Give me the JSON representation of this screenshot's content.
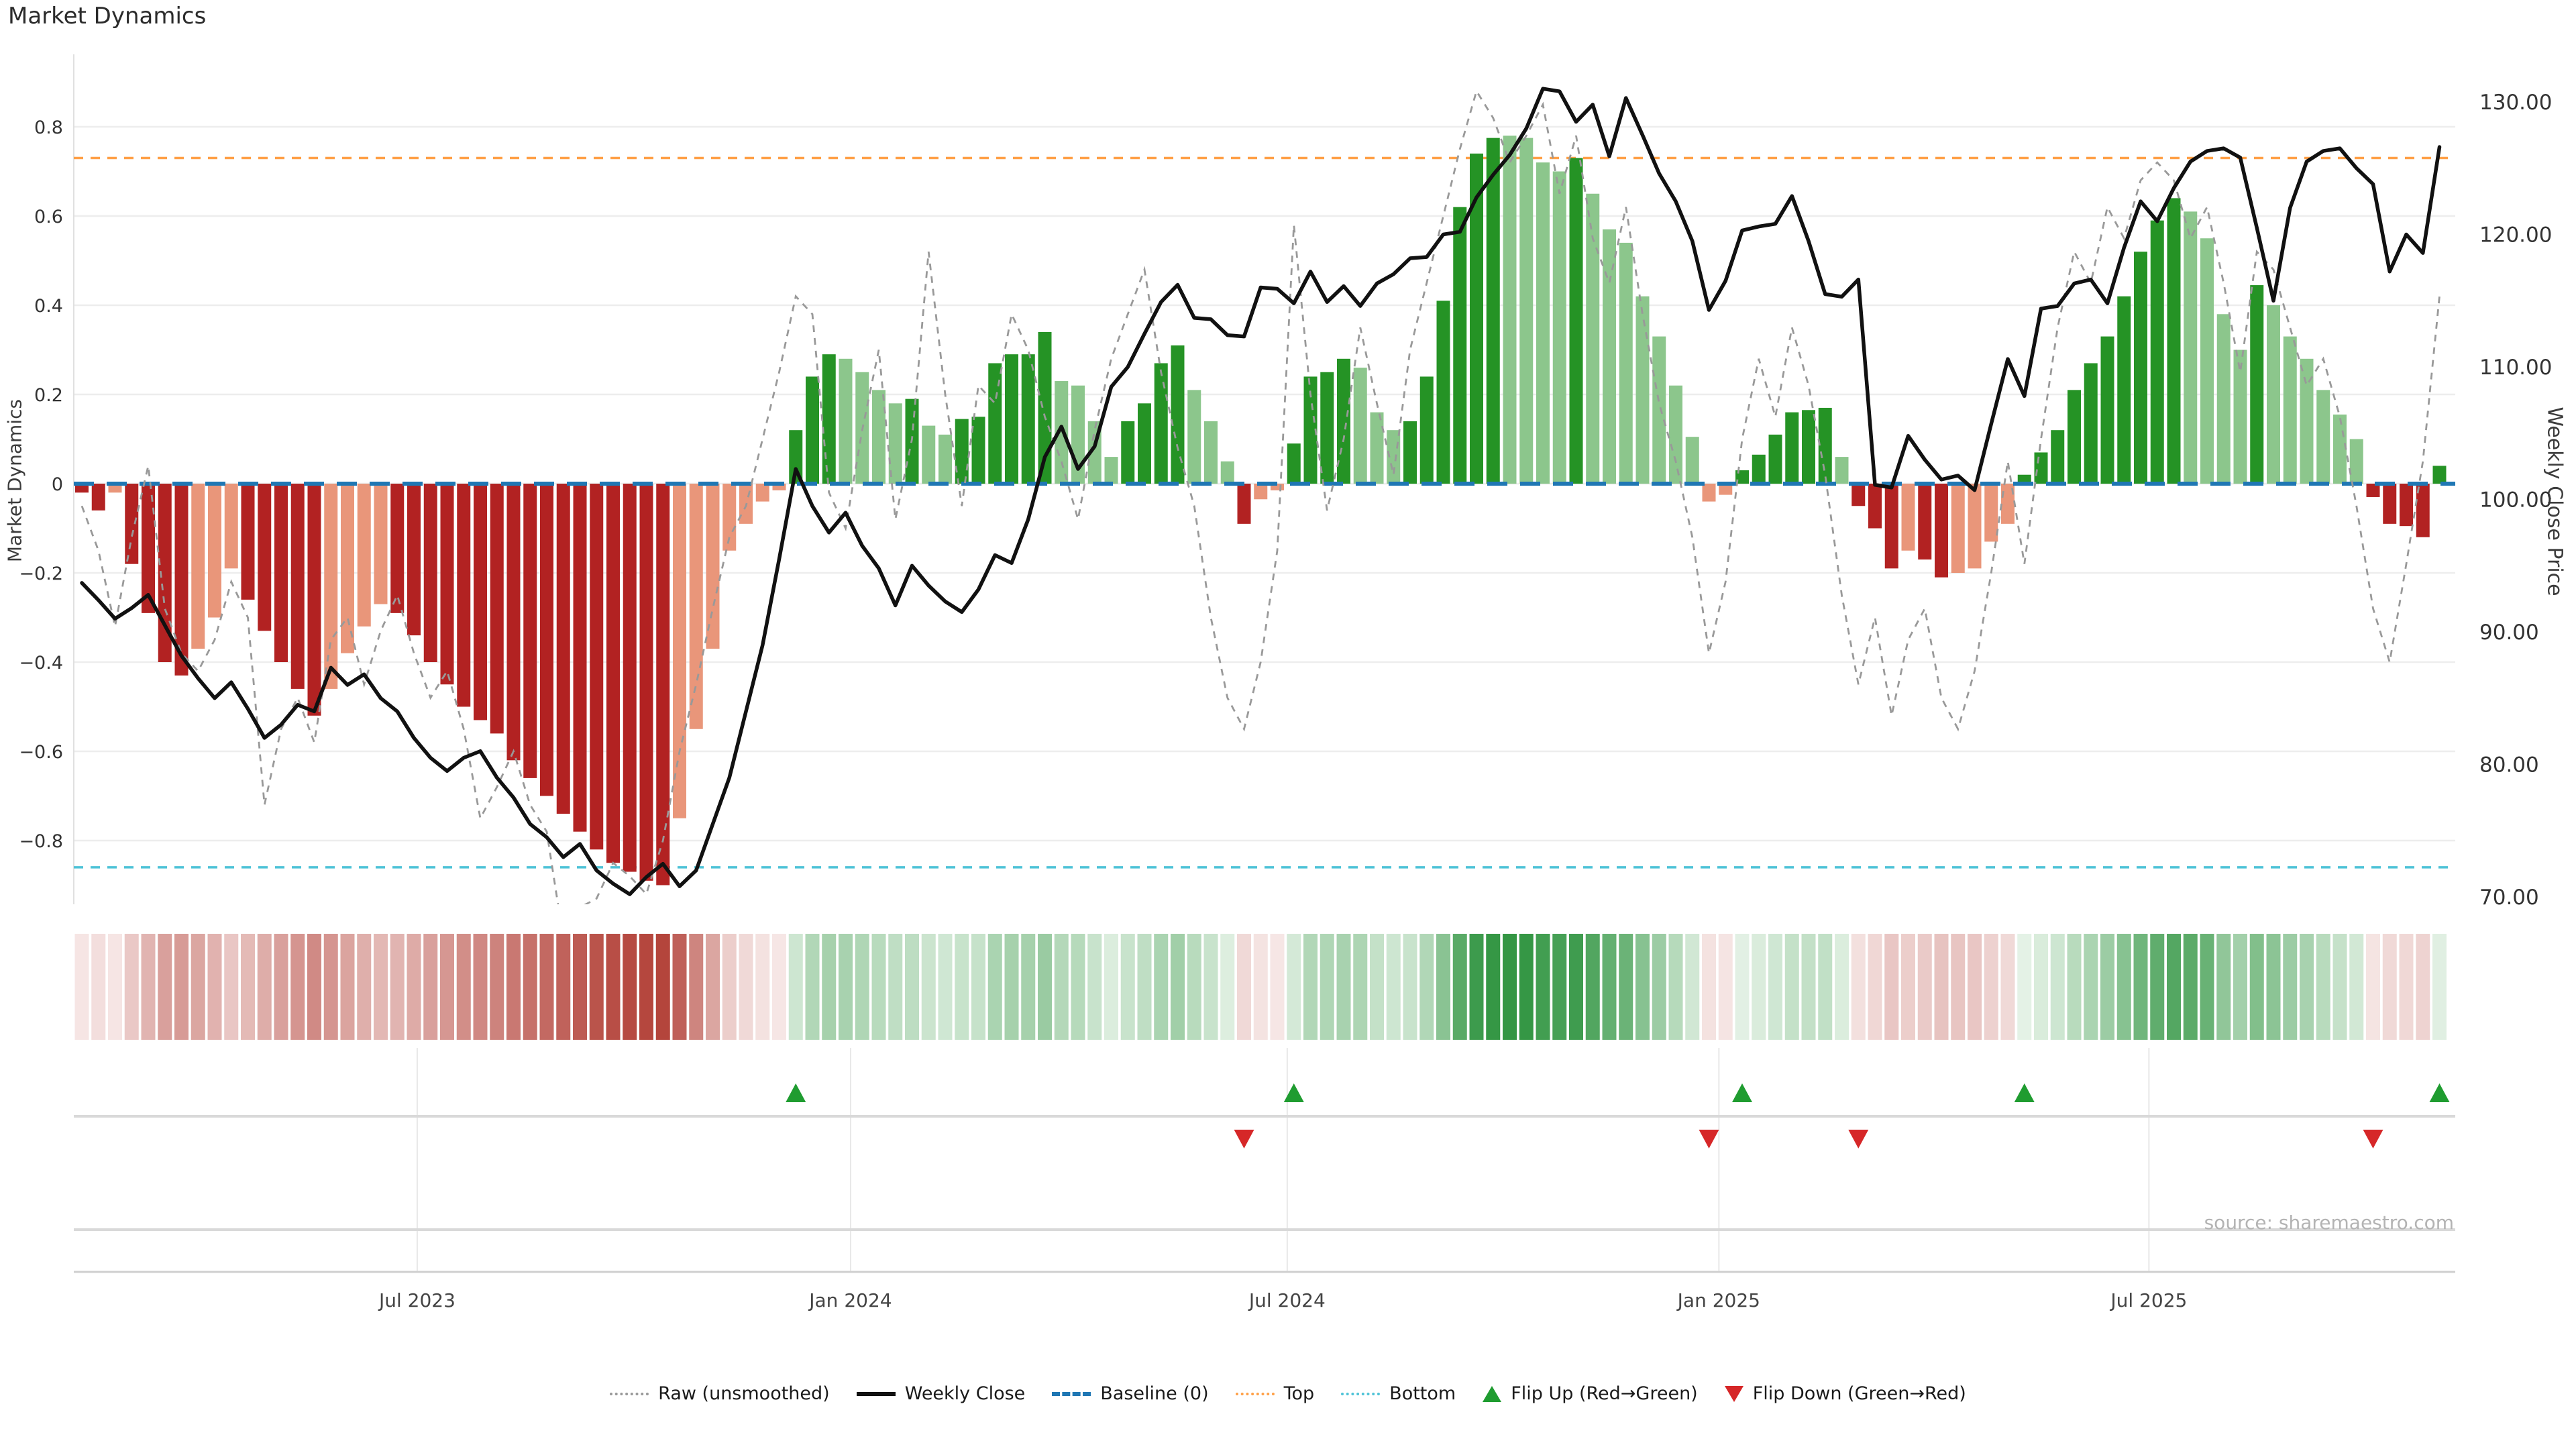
{
  "header": {
    "title": "Market Dynamics"
  },
  "source": "source: sharemaestro.com",
  "colors": {
    "dark_red": "#b22222",
    "salmon": "#e9967a",
    "dark_green": "#259325",
    "light_green": "#8cc68c",
    "baseline": "#1f77b4",
    "top_line": "#ffa047",
    "bottom_line": "#4fc3d7",
    "close_line": "#111111",
    "raw_line": "#999999",
    "flip_up": "#1f9c30",
    "flip_down": "#d62728",
    "grid": "#ededed",
    "panel_line": "#d9d9d9"
  },
  "legend": {
    "items": [
      {
        "label": "Raw (unsmoothed)"
      },
      {
        "label": "Weekly Close"
      },
      {
        "label": "Baseline (0)"
      },
      {
        "label": "Top"
      },
      {
        "label": "Bottom"
      },
      {
        "label": "Flip Up (Red→Green)"
      },
      {
        "label": "Flip Down (Green→Red)"
      }
    ]
  },
  "chart_data": {
    "type": "combo",
    "title": "Market Dynamics",
    "x": {
      "unit": "week-index",
      "count": 143,
      "ticks": [
        {
          "pos": 20.2,
          "label": "Jul 2023"
        },
        {
          "pos": 46.3,
          "label": "Jan 2024"
        },
        {
          "pos": 72.6,
          "label": "Jul 2024"
        },
        {
          "pos": 98.6,
          "label": "Jan 2025"
        },
        {
          "pos": 124.5,
          "label": "Jul 2025"
        }
      ]
    },
    "left_axis": {
      "title": "Market Dynamics",
      "tick_values": [
        0.8,
        0.6,
        0.4,
        0.2,
        0,
        -0.2,
        -0.4,
        -0.6,
        -0.8
      ],
      "tick_labels": [
        "0.8",
        "0.6",
        "0.4",
        "0.2",
        "0",
        "−0.2",
        "−0.4",
        "−0.6",
        "−0.8"
      ],
      "range": [
        -0.96,
        0.96
      ]
    },
    "right_axis": {
      "title": "Weekly Close Price",
      "tick_values": [
        130,
        120,
        110,
        100,
        90,
        80,
        70
      ],
      "tick_labels": [
        "130.00",
        "120.00",
        "110.00",
        "100.00",
        "90.00",
        "80.00",
        "70.00"
      ],
      "range": [
        68.9,
        131.7
      ]
    },
    "reference_lines": {
      "baseline": 0,
      "top": 0.73,
      "bottom": -0.86
    },
    "series": [
      {
        "name": "Market Dynamics (smoothed)",
        "type": "bar",
        "axis": "left",
        "values": [
          -0.02,
          -0.06,
          -0.02,
          -0.18,
          -0.29,
          -0.4,
          -0.43,
          -0.37,
          -0.3,
          -0.19,
          -0.26,
          -0.33,
          -0.4,
          -0.46,
          -0.52,
          -0.46,
          -0.38,
          -0.32,
          -0.27,
          -0.29,
          -0.34,
          -0.4,
          -0.45,
          -0.5,
          -0.53,
          -0.56,
          -0.62,
          -0.66,
          -0.7,
          -0.74,
          -0.78,
          -0.82,
          -0.85,
          -0.87,
          -0.89,
          -0.9,
          -0.75,
          -0.55,
          -0.37,
          -0.15,
          -0.09,
          -0.04,
          -0.015,
          0.12,
          0.24,
          0.29,
          0.28,
          0.25,
          0.21,
          0.18,
          0.19,
          0.13,
          0.11,
          0.145,
          0.15,
          0.27,
          0.29,
          0.29,
          0.34,
          0.23,
          0.22,
          0.14,
          0.06,
          0.14,
          0.18,
          0.27,
          0.31,
          0.21,
          0.14,
          0.05,
          -0.09,
          -0.035,
          -0.015,
          0.09,
          0.24,
          0.25,
          0.28,
          0.26,
          0.16,
          0.12,
          0.14,
          0.24,
          0.41,
          0.62,
          0.74,
          0.775,
          0.78,
          0.775,
          0.72,
          0.7,
          0.73,
          0.65,
          0.57,
          0.54,
          0.42,
          0.33,
          0.22,
          0.105,
          -0.04,
          -0.025,
          0.03,
          0.065,
          0.11,
          0.16,
          0.165,
          0.17,
          0.06,
          -0.05,
          -0.1,
          -0.19,
          -0.15,
          -0.17,
          -0.21,
          -0.2,
          -0.19,
          -0.13,
          -0.09,
          0.02,
          0.07,
          0.12,
          0.21,
          0.27,
          0.33,
          0.42,
          0.52,
          0.59,
          0.64,
          0.61,
          0.55,
          0.38,
          0.3,
          0.445,
          0.4,
          0.33,
          0.28,
          0.21,
          0.155,
          0.1,
          -0.03,
          -0.09,
          -0.095,
          -0.12,
          0.04
        ],
        "bar_classes": [
          "dr",
          "dr",
          "sr",
          "dr",
          "dr",
          "dr",
          "dr",
          "sr",
          "sr",
          "sr",
          "dr",
          "dr",
          "dr",
          "dr",
          "dr",
          "sr",
          "sr",
          "sr",
          "sr",
          "dr",
          "dr",
          "dr",
          "dr",
          "dr",
          "dr",
          "dr",
          "dr",
          "dr",
          "dr",
          "dr",
          "dr",
          "dr",
          "dr",
          "dr",
          "dr",
          "dr",
          "sr",
          "sr",
          "sr",
          "sr",
          "sr",
          "sr",
          "sr",
          "dg",
          "dg",
          "dg",
          "lg",
          "lg",
          "lg",
          "lg",
          "dg",
          "lg",
          "lg",
          "dg",
          "dg",
          "dg",
          "dg",
          "dg",
          "dg",
          "lg",
          "lg",
          "lg",
          "lg",
          "dg",
          "dg",
          "dg",
          "dg",
          "lg",
          "lg",
          "lg",
          "dr",
          "sr",
          "sr",
          "dg",
          "dg",
          "dg",
          "dg",
          "lg",
          "lg",
          "lg",
          "dg",
          "dg",
          "dg",
          "dg",
          "dg",
          "dg",
          "lg",
          "lg",
          "lg",
          "lg",
          "dg",
          "lg",
          "lg",
          "lg",
          "lg",
          "lg",
          "lg",
          "lg",
          "sr",
          "sr",
          "dg",
          "dg",
          "dg",
          "dg",
          "dg",
          "dg",
          "lg",
          "dr",
          "dr",
          "dr",
          "sr",
          "dr",
          "dr",
          "sr",
          "sr",
          "sr",
          "sr",
          "dg",
          "dg",
          "dg",
          "dg",
          "dg",
          "dg",
          "dg",
          "dg",
          "dg",
          "dg",
          "lg",
          "lg",
          "lg",
          "lg",
          "dg",
          "lg",
          "lg",
          "lg",
          "lg",
          "lg",
          "lg",
          "dr",
          "dr",
          "dr",
          "dr",
          "dg"
        ]
      },
      {
        "name": "Raw (unsmoothed)",
        "type": "line",
        "style": "dashed",
        "axis": "left",
        "values": [
          -0.05,
          -0.15,
          -0.32,
          -0.12,
          0.04,
          -0.28,
          -0.38,
          -0.42,
          -0.35,
          -0.22,
          -0.3,
          -0.72,
          -0.55,
          -0.48,
          -0.58,
          -0.35,
          -0.3,
          -0.45,
          -0.33,
          -0.25,
          -0.38,
          -0.48,
          -0.42,
          -0.55,
          -0.75,
          -0.68,
          -0.6,
          -0.72,
          -0.78,
          -1.02,
          -0.95,
          -0.93,
          -0.85,
          -0.88,
          -0.92,
          -0.8,
          -0.6,
          -0.45,
          -0.28,
          -0.12,
          -0.05,
          0.1,
          0.25,
          0.42,
          0.38,
          -0.02,
          -0.1,
          0.12,
          0.3,
          -0.08,
          0.1,
          0.52,
          0.2,
          -0.05,
          0.22,
          0.18,
          0.38,
          0.3,
          0.15,
          0.05,
          -0.08,
          0.12,
          0.28,
          0.38,
          0.48,
          0.25,
          0.08,
          -0.05,
          -0.3,
          -0.48,
          -0.55,
          -0.4,
          -0.15,
          0.58,
          0.2,
          -0.06,
          0.1,
          0.35,
          0.18,
          0.02,
          0.3,
          0.45,
          0.6,
          0.75,
          0.88,
          0.82,
          0.72,
          0.78,
          0.85,
          0.65,
          0.78,
          0.55,
          0.45,
          0.62,
          0.38,
          0.18,
          0.05,
          -0.12,
          -0.38,
          -0.22,
          0.1,
          0.28,
          0.15,
          0.35,
          0.22,
          0.02,
          -0.25,
          -0.45,
          -0.3,
          -0.52,
          -0.35,
          -0.28,
          -0.48,
          -0.55,
          -0.42,
          -0.2,
          0.05,
          -0.18,
          0.1,
          0.35,
          0.52,
          0.45,
          0.62,
          0.55,
          0.68,
          0.72,
          0.68,
          0.55,
          0.62,
          0.45,
          0.25,
          0.52,
          0.48,
          0.35,
          0.22,
          0.28,
          0.15,
          -0.05,
          -0.28,
          -0.4,
          -0.18,
          0.05,
          0.42
        ]
      },
      {
        "name": "Weekly Close",
        "type": "line",
        "axis": "right",
        "values": [
          93.7,
          92.4,
          91.0,
          91.8,
          92.8,
          90.5,
          88.2,
          86.5,
          85.0,
          86.2,
          84.2,
          82.0,
          83.0,
          84.5,
          84.0,
          87.3,
          86.0,
          86.8,
          85.0,
          84.0,
          82.0,
          80.5,
          79.5,
          80.5,
          81.0,
          79.0,
          77.5,
          75.5,
          74.5,
          73.0,
          74.0,
          72.0,
          71.0,
          70.2,
          71.5,
          72.5,
          70.8,
          72.0,
          75.5,
          79.0,
          84.0,
          89.0,
          95.5,
          102.3,
          99.5,
          97.5,
          99.0,
          96.5,
          94.8,
          92.0,
          95.0,
          93.5,
          92.3,
          91.5,
          93.2,
          95.8,
          95.2,
          98.5,
          103.2,
          105.5,
          102.3,
          104.0,
          108.5,
          110.0,
          112.5,
          114.9,
          116.2,
          113.7,
          113.6,
          112.4,
          112.3,
          116.0,
          115.9,
          114.8,
          117.2,
          114.9,
          116.1,
          114.6,
          116.3,
          117.0,
          118.2,
          118.3,
          120.0,
          120.2,
          122.8,
          124.5,
          126.0,
          128.0,
          131.0,
          130.8,
          128.5,
          129.8,
          125.9,
          130.3,
          127.5,
          124.6,
          122.5,
          119.5,
          114.3,
          116.5,
          120.3,
          120.6,
          120.8,
          122.9,
          119.5,
          115.5,
          115.3,
          116.6,
          101.1,
          100.9,
          104.8,
          103.0,
          101.5,
          101.8,
          100.7,
          105.7,
          110.6,
          107.8,
          114.4,
          114.6,
          116.3,
          116.6,
          114.8,
          119.0,
          122.5,
          121.0,
          123.5,
          125.5,
          126.3,
          126.5,
          125.8,
          120.5,
          115.0,
          122.0,
          125.5,
          126.3,
          126.5,
          125.0,
          123.8,
          117.2,
          120.0,
          118.6,
          126.6
        ]
      }
    ],
    "markers": {
      "flip_up_weeks": [
        43,
        73,
        100,
        117,
        142
      ],
      "flip_down_weeks": [
        70,
        98,
        107,
        138
      ]
    },
    "heatmap": {
      "maps": "bar values as red→green intensity strip, one cell per week"
    },
    "grid": true,
    "legend_position": "bottom-center"
  }
}
